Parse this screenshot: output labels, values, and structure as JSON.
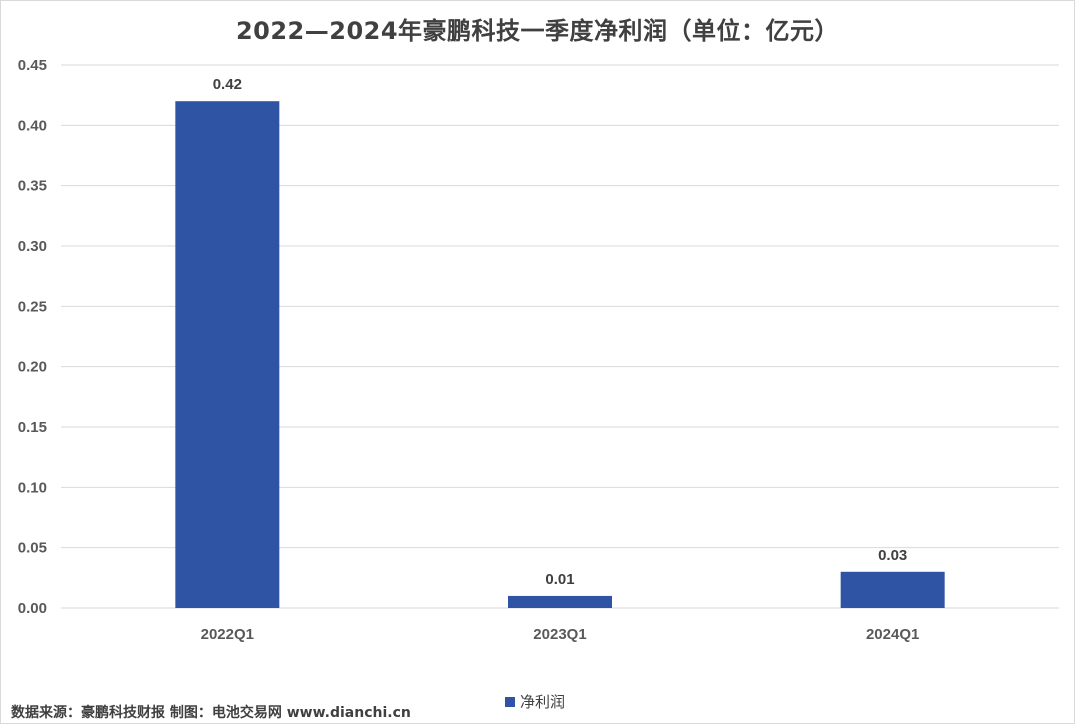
{
  "chart_data": {
    "type": "bar",
    "title": "2022—2024年豪鹏科技一季度净利润（单位：亿元）",
    "categories": [
      "2022Q1",
      "2023Q1",
      "2024Q1"
    ],
    "series": [
      {
        "name": "净利润",
        "values": [
          0.42,
          0.01,
          0.03
        ],
        "color": "#2e54a3"
      }
    ],
    "data_labels": [
      "0.42",
      "0.01",
      "0.03"
    ],
    "y_ticks": [
      "0.00",
      "0.05",
      "0.10",
      "0.15",
      "0.20",
      "0.25",
      "0.30",
      "0.35",
      "0.40",
      "0.45"
    ],
    "ylim": [
      0,
      0.45
    ],
    "grid": true,
    "legend_position": "bottom"
  },
  "footer": {
    "source": "数据来源：豪鹏科技财报 制图：电池交易网 www.dianchi.cn"
  }
}
